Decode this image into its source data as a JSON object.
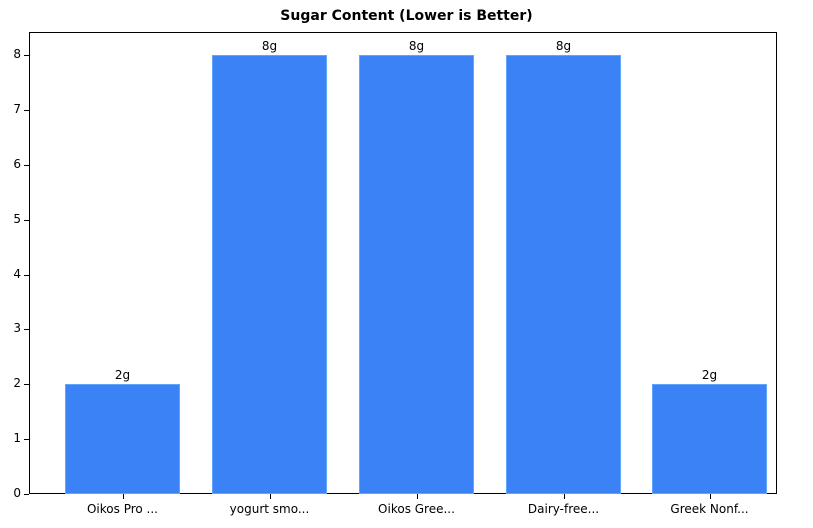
{
  "chart_data": {
    "type": "bar",
    "title": "Sugar Content (Lower is Better)",
    "categories": [
      "Oikos Pro ...",
      "yogurt smo...",
      "Oikos Gree...",
      "Dairy-free...",
      "Greek Nonf..."
    ],
    "values": [
      2,
      8,
      8,
      8,
      2
    ],
    "data_labels": [
      "2g",
      "8g",
      "8g",
      "8g",
      "2g"
    ],
    "xlabel": "",
    "ylabel": "",
    "ylim": [
      0,
      8.4
    ],
    "yticks": [
      "0",
      "1",
      "2",
      "3",
      "4",
      "5",
      "6",
      "7",
      "8"
    ],
    "grid": false,
    "legend": null,
    "bar_color": "#3b82f6"
  }
}
